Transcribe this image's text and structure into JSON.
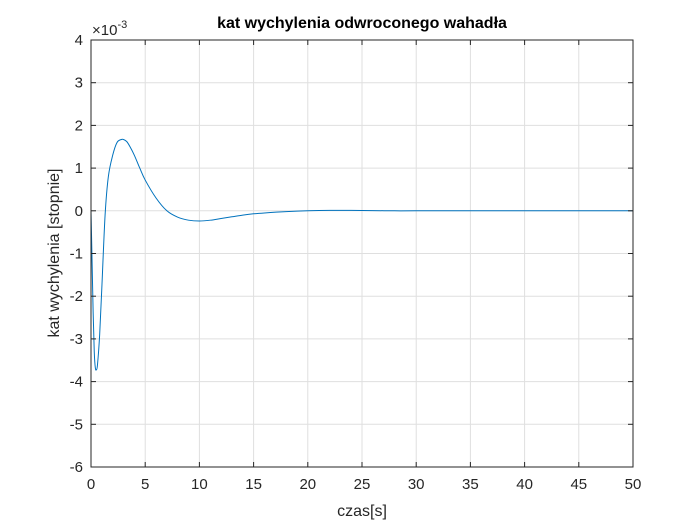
{
  "chart_data": {
    "type": "line",
    "title": "kat wychylenia odwroconego wahadła",
    "xlabel": "czas[s]",
    "ylabel": "kat wychylenia [stopnie]",
    "xlim": [
      0,
      50
    ],
    "ylim": [
      -6,
      4
    ],
    "x_ticks": [
      "0",
      "5",
      "10",
      "15",
      "20",
      "25",
      "30",
      "35",
      "40",
      "45",
      "50"
    ],
    "y_ticks": [
      "4",
      "3",
      "2",
      "1",
      "0",
      "-1",
      "-2",
      "-3",
      "-4",
      "-5",
      "-6"
    ],
    "y_exponent": {
      "base": "×10",
      "power": "-3"
    },
    "grid": true,
    "line_color": "#0072bd",
    "series": [
      {
        "x": [
          0,
          0.1,
          0.2,
          0.3,
          0.4,
          0.5,
          0.6,
          0.8,
          1.0,
          1.3,
          1.6,
          2.0,
          2.4,
          2.8,
          3.0,
          3.3,
          3.6,
          4.0,
          4.5,
          5.0,
          6.0,
          7.0,
          8.0,
          9.0,
          10.0,
          11.0,
          12.0,
          13.0,
          14.0,
          15.0,
          16.0,
          18.0,
          20.0,
          22.0,
          24.0,
          26.0,
          28.0,
          30.0,
          35.0,
          40.0,
          45.0,
          50.0
        ],
        "y": [
          0,
          -1.2,
          -2.4,
          -3.3,
          -3.68,
          -3.72,
          -3.6,
          -2.9,
          -1.8,
          -0.1,
          0.8,
          1.3,
          1.6,
          1.67,
          1.67,
          1.62,
          1.5,
          1.3,
          1.0,
          0.72,
          0.3,
          0.0,
          -0.15,
          -0.22,
          -0.24,
          -0.22,
          -0.18,
          -0.14,
          -0.1,
          -0.07,
          -0.05,
          -0.02,
          0.0,
          0.01,
          0.01,
          0.005,
          0.0,
          0.0,
          0.0,
          0.0,
          0.0,
          0.0
        ]
      }
    ]
  }
}
